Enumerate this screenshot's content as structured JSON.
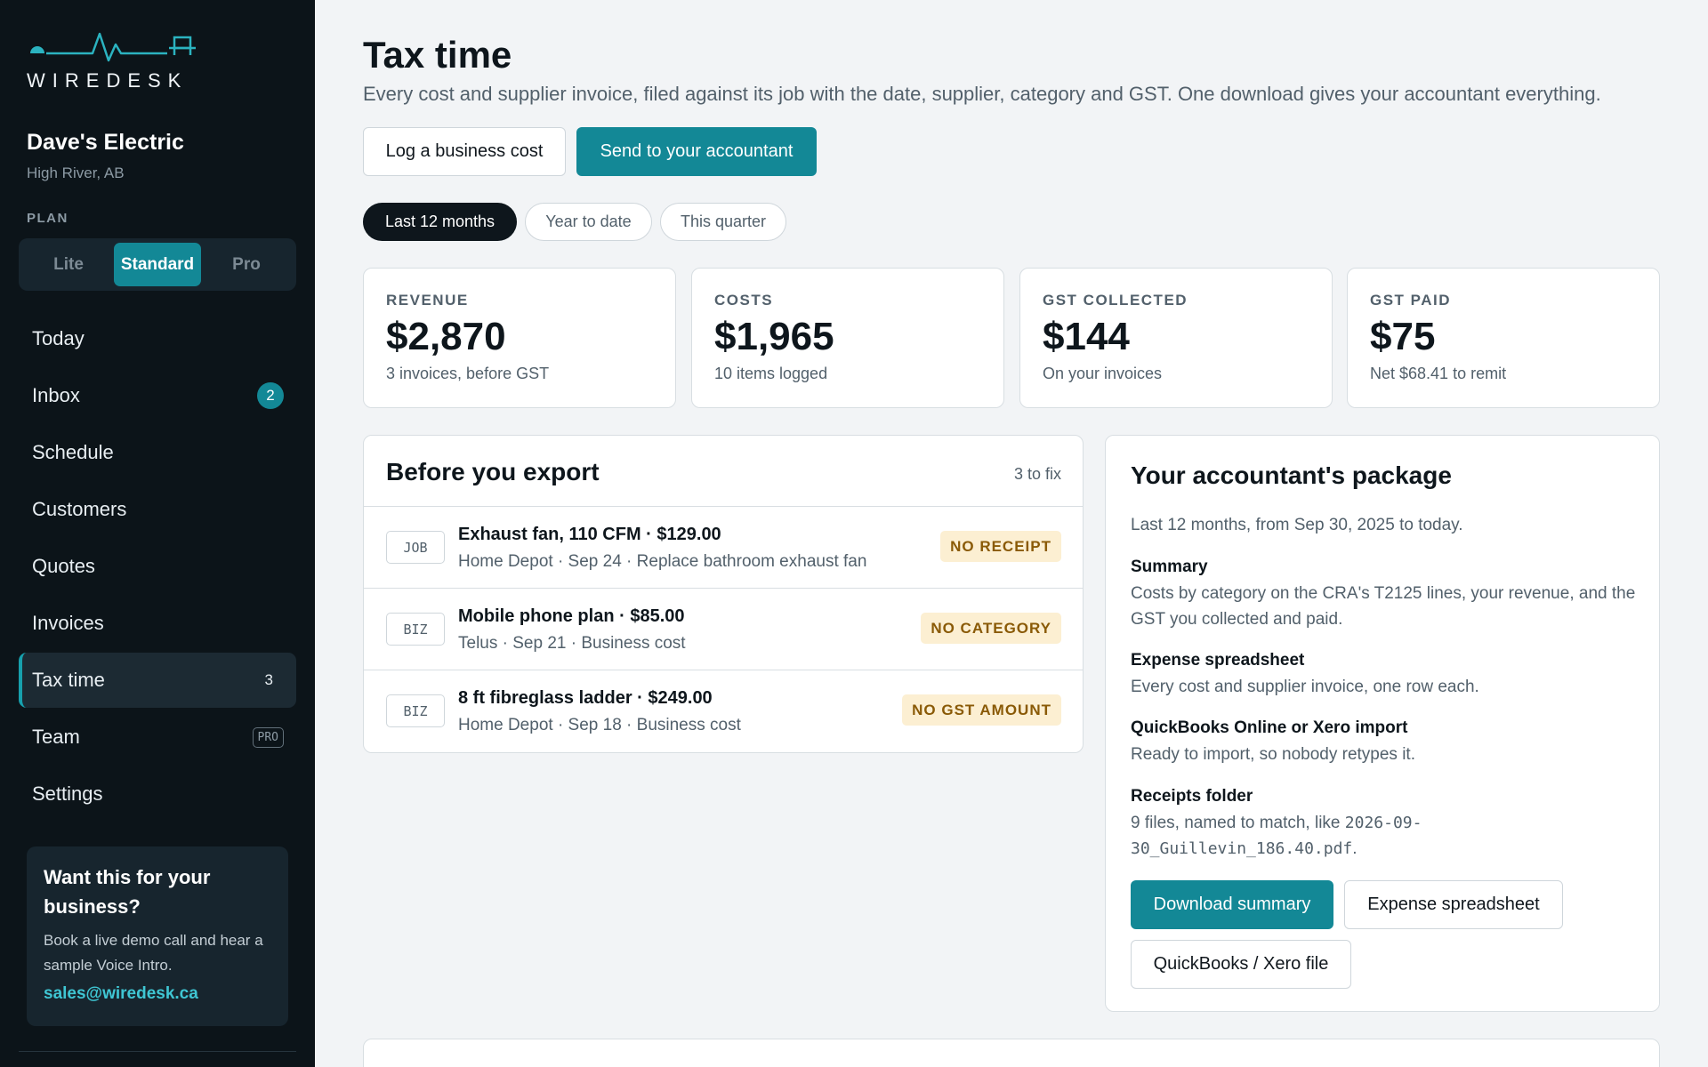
{
  "brand": {
    "name": "WIREDESK",
    "accent": "#138896"
  },
  "business": {
    "name": "Dave's Electric",
    "location": "High River, AB"
  },
  "plan": {
    "label": "PLAN",
    "options": [
      "Lite",
      "Standard",
      "Pro"
    ],
    "selected": "Standard"
  },
  "nav": {
    "items": [
      {
        "label": "Today"
      },
      {
        "label": "Inbox",
        "badge": "2"
      },
      {
        "label": "Schedule"
      },
      {
        "label": "Customers"
      },
      {
        "label": "Quotes"
      },
      {
        "label": "Invoices"
      },
      {
        "label": "Tax time",
        "count": "3",
        "active": true
      },
      {
        "label": "Team",
        "tag": "PRO"
      },
      {
        "label": "Settings"
      }
    ]
  },
  "promo": {
    "title": "Want this for your business?",
    "body": "Book a live demo call and hear a sample Voice Intro.",
    "link": "sales@wiredesk.ca"
  },
  "header": {
    "title": "Tax time",
    "subtitle": "Every cost and supplier invoice, filed against its job with the date, supplier, category and GST. One download gives your accountant everything.",
    "log_button": "Log a business cost",
    "send_button": "Send to your accountant"
  },
  "filters": {
    "options": [
      "Last 12 months",
      "Year to date",
      "This quarter"
    ],
    "selected": "Last 12 months"
  },
  "stats": [
    {
      "label": "REVENUE",
      "value": "$2,870",
      "note": "3 invoices, before GST"
    },
    {
      "label": "COSTS",
      "value": "$1,965",
      "note": "10 items logged"
    },
    {
      "label": "GST COLLECTED",
      "value": "$144",
      "note": "On your invoices"
    },
    {
      "label": "GST PAID",
      "value": "$75",
      "note": "Net $68.41 to remit"
    }
  ],
  "export_check": {
    "title": "Before you export",
    "count": "3 to fix",
    "items": [
      {
        "tag": "JOB",
        "title": "Exhaust fan, 110 CFM · $129.00",
        "meta": "Home Depot · Sep 24 · Replace bathroom exhaust fan",
        "issue": "NO RECEIPT"
      },
      {
        "tag": "BIZ",
        "title": "Mobile phone plan · $85.00",
        "meta": "Telus · Sep 21 · Business cost",
        "issue": "NO CATEGORY"
      },
      {
        "tag": "BIZ",
        "title": "8 ft fibreglass ladder · $249.00",
        "meta": "Home Depot · Sep 18 · Business cost",
        "issue": "NO GST AMOUNT"
      }
    ]
  },
  "package": {
    "title": "Your accountant's package",
    "range": "Last 12 months, from Sep 30, 2025 to today.",
    "sections": [
      {
        "heading": "Summary",
        "body": "Costs by category on the CRA's T2125 lines, your revenue, and the GST you collected and paid."
      },
      {
        "heading": "Expense spreadsheet",
        "body": "Every cost and supplier invoice, one row each."
      },
      {
        "heading": "QuickBooks Online or Xero import",
        "body": "Ready to import, so nobody retypes it."
      }
    ],
    "receipts": {
      "heading": "Receipts folder",
      "prefix": "9 files, named to match, like ",
      "filename": "2026-09-30_Guillevin_186.40.pdf",
      "suffix": "."
    },
    "buttons": {
      "download": "Download summary",
      "spreadsheet": "Expense spreadsheet",
      "quickbooks": "QuickBooks / Xero file"
    }
  }
}
